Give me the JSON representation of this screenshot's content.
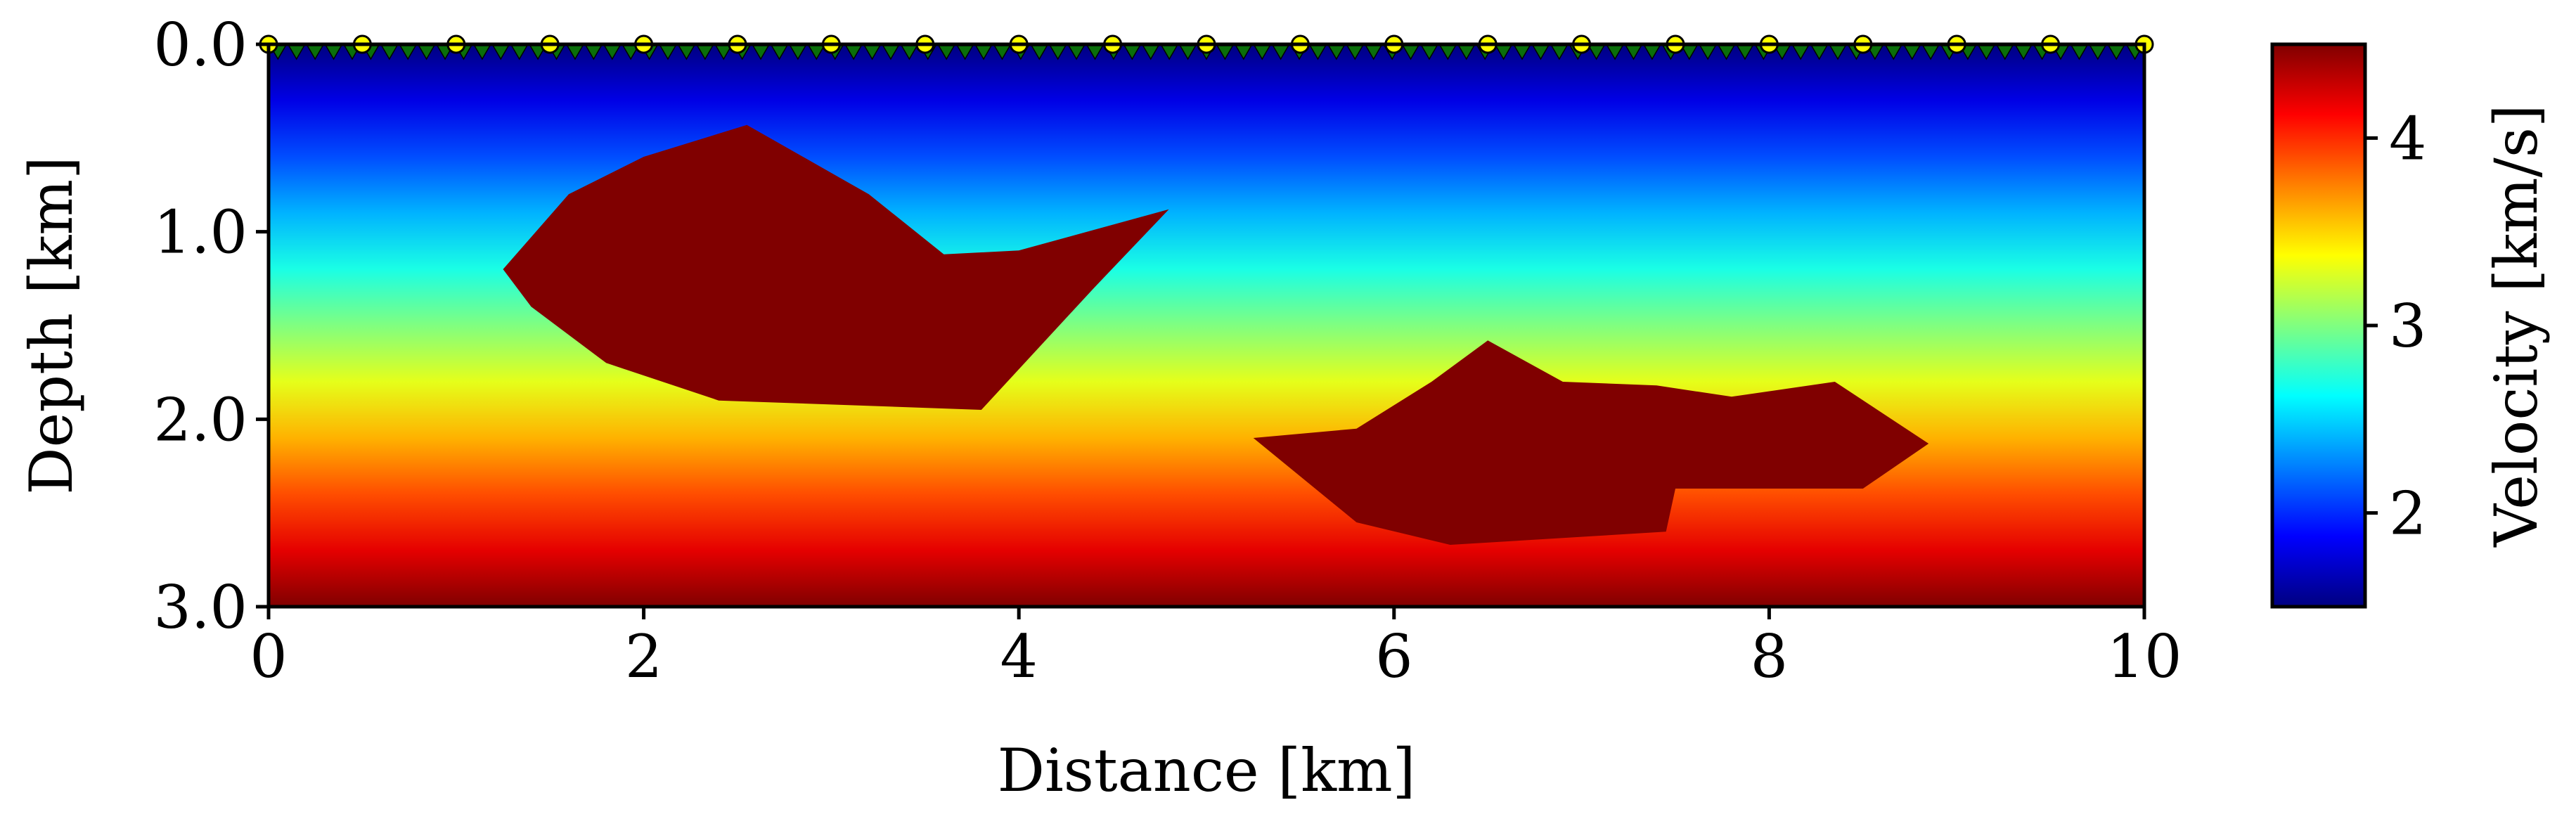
{
  "chart_data": {
    "type": "heatmap",
    "title": "",
    "xlabel": "Distance [km]",
    "ylabel": "Depth [km]",
    "xlim": [
      0,
      10
    ],
    "ylim": [
      3.0,
      0.0
    ],
    "xticks": [
      0,
      2,
      4,
      6,
      8,
      10
    ],
    "xtick_labels": [
      "0",
      "2",
      "4",
      "6",
      "8",
      "10"
    ],
    "yticks": [
      0.0,
      1.0,
      2.0,
      3.0
    ],
    "ytick_labels": [
      "0.0",
      "1.0",
      "2.0",
      "3.0"
    ],
    "grid": false,
    "colormap": "jet",
    "colorbar": {
      "label": "Velocity [km/s]",
      "range": [
        1.5,
        4.5
      ],
      "ticks": [
        2,
        3,
        4
      ],
      "tick_labels": [
        "2",
        "3",
        "4"
      ]
    },
    "background_velocity": {
      "depth_km": [
        0.0,
        0.3,
        0.6,
        0.9,
        1.2,
        1.5,
        1.8,
        2.1,
        2.4,
        2.7,
        3.0
      ],
      "velocity_km_s": [
        1.5,
        1.8,
        2.1,
        2.4,
        2.7,
        3.0,
        3.3,
        3.6,
        3.9,
        4.2,
        4.5
      ]
    },
    "anomalies": [
      {
        "velocity_km_s": 4.5,
        "outline": [
          [
            1.25,
            1.2
          ],
          [
            1.6,
            0.8
          ],
          [
            2.0,
            0.6
          ],
          [
            2.55,
            0.43
          ],
          [
            3.2,
            0.8
          ],
          [
            3.6,
            1.12
          ],
          [
            4.0,
            1.1
          ],
          [
            4.8,
            0.88
          ],
          [
            4.4,
            1.3
          ],
          [
            3.8,
            1.95
          ],
          [
            2.4,
            1.9
          ],
          [
            1.8,
            1.7
          ],
          [
            1.4,
            1.4
          ]
        ]
      },
      {
        "velocity_km_s": 4.5,
        "outline": [
          [
            5.25,
            2.1
          ],
          [
            5.8,
            2.05
          ],
          [
            6.2,
            1.8
          ],
          [
            6.5,
            1.58
          ],
          [
            6.9,
            1.8
          ],
          [
            7.4,
            1.82
          ],
          [
            7.8,
            1.88
          ],
          [
            8.35,
            1.8
          ],
          [
            8.85,
            2.13
          ],
          [
            8.5,
            2.37
          ],
          [
            7.5,
            2.37
          ],
          [
            7.45,
            2.6
          ],
          [
            6.3,
            2.67
          ],
          [
            5.8,
            2.55
          ]
        ]
      }
    ],
    "sources": {
      "x_km": [
        0,
        0.5,
        1,
        1.5,
        2,
        2.5,
        3,
        3.5,
        4,
        4.5,
        5,
        5.5,
        6,
        6.5,
        7,
        7.5,
        8,
        8.5,
        9,
        9.5,
        10
      ],
      "depth_km": 0.0,
      "color": "#ffff00",
      "marker": "circle"
    },
    "receivers": {
      "x_start_km": 0.05,
      "x_end_km": 9.95,
      "count": 101,
      "depth_km": 0.0,
      "color": "#0a6e0a",
      "marker": "triangle-down"
    }
  }
}
